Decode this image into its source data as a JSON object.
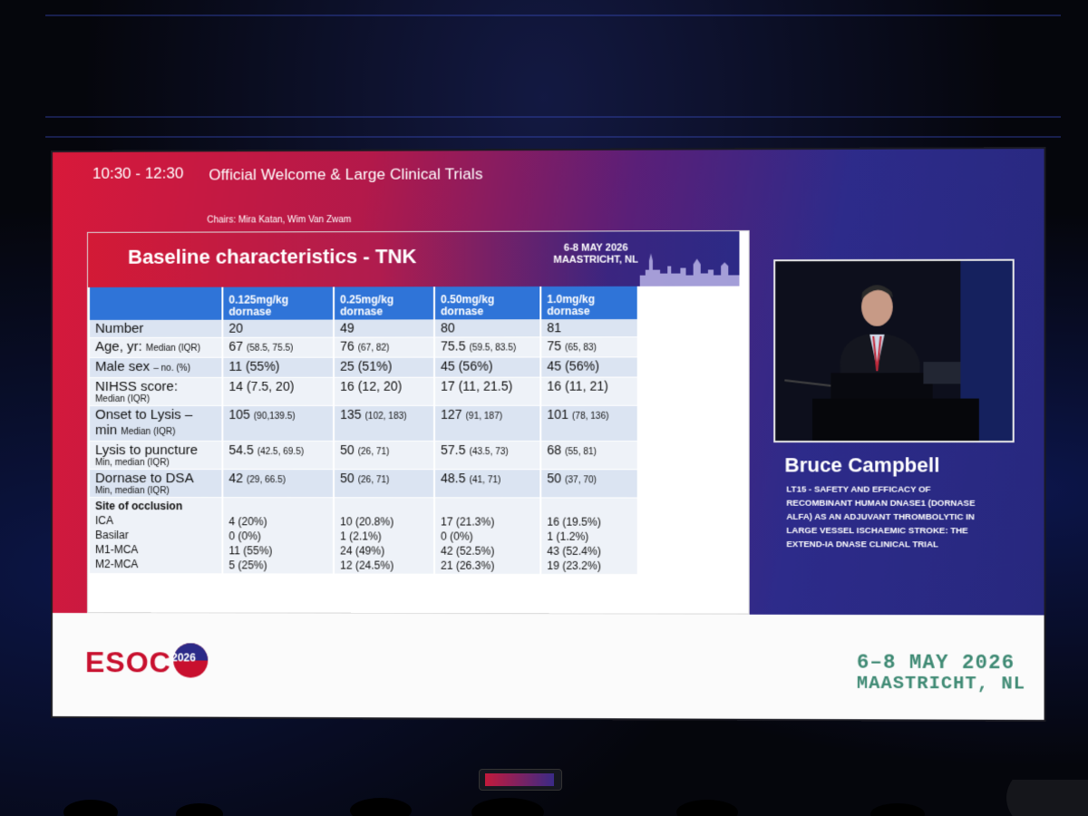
{
  "session": {
    "time": "10:30 - 12:30",
    "title": "Official Welcome & Large Clinical Trials",
    "chairs": "Chairs: Mira Katan, Wim Van Zwam"
  },
  "slide": {
    "title": "Baseline characteristics - TNK",
    "dates_line1": "6-8 MAY 2026",
    "dates_line2": "MAASTRICHT, NL",
    "columns": [
      {
        "dose": "0.125mg/kg",
        "drug": "dornase"
      },
      {
        "dose": "0.25mg/kg",
        "drug": "dornase"
      },
      {
        "dose": "0.50mg/kg",
        "drug": "dornase"
      },
      {
        "dose": "1.0mg/kg",
        "drug": "dornase"
      }
    ],
    "rows": [
      {
        "label": "Number",
        "sub": "",
        "sub_below": "",
        "cells": [
          {
            "main": "20",
            "ci": ""
          },
          {
            "main": "49",
            "ci": ""
          },
          {
            "main": "80",
            "ci": ""
          },
          {
            "main": "81",
            "ci": ""
          }
        ]
      },
      {
        "label": "Age, yr:",
        "sub": "Median (IQR)",
        "sub_below": "",
        "cells": [
          {
            "main": "67",
            "ci": "(58.5, 75.5)"
          },
          {
            "main": "76",
            "ci": "(67, 82)"
          },
          {
            "main": "75.5",
            "ci": "(59.5, 83.5)"
          },
          {
            "main": "75",
            "ci": "(65, 83)"
          }
        ]
      },
      {
        "label": "Male sex",
        "sub": "– no. (%)",
        "sub_below": "",
        "cells": [
          {
            "main": "11 (55%)",
            "ci": ""
          },
          {
            "main": "25 (51%)",
            "ci": ""
          },
          {
            "main": "45 (56%)",
            "ci": ""
          },
          {
            "main": "45 (56%)",
            "ci": ""
          }
        ]
      },
      {
        "label": "NIHSS score:",
        "sub": "",
        "sub_below": "Median (IQR)",
        "cells": [
          {
            "main": "14 (7.5, 20)",
            "ci": ""
          },
          {
            "main": "16 (12, 20)",
            "ci": ""
          },
          {
            "main": "17 (11, 21.5)",
            "ci": ""
          },
          {
            "main": "16 (11, 21)",
            "ci": ""
          }
        ]
      },
      {
        "label": "Onset to Lysis – min",
        "sub": "Median (IQR)",
        "sub_below": "",
        "cells": [
          {
            "main": "105",
            "ci": "(90,139.5)"
          },
          {
            "main": "135",
            "ci": "(102, 183)"
          },
          {
            "main": "127",
            "ci": "(91, 187)"
          },
          {
            "main": "101",
            "ci": "(78, 136)"
          }
        ]
      },
      {
        "label": "Lysis to puncture",
        "sub": "",
        "sub_below": "Min, median (IQR)",
        "cells": [
          {
            "main": "54.5",
            "ci": "(42.5, 69.5)"
          },
          {
            "main": "50",
            "ci": "(26, 71)"
          },
          {
            "main": "57.5",
            "ci": "(43.5, 73)"
          },
          {
            "main": "68",
            "ci": "(55, 81)"
          }
        ]
      },
      {
        "label": "Dornase to DSA",
        "sub": "",
        "sub_below": "Min, median (IQR)",
        "cells": [
          {
            "main": "42",
            "ci": "(29, 66.5)"
          },
          {
            "main": "50",
            "ci": "(26, 71)"
          },
          {
            "main": "48.5",
            "ci": "(41, 71)"
          },
          {
            "main": "50",
            "ci": "(37, 70)"
          }
        ]
      }
    ],
    "occlusion": {
      "header": "Site of occlusion",
      "labels": [
        "ICA",
        "Basilar",
        "M1-MCA",
        "M2-MCA"
      ],
      "values": [
        [
          "4 (20%)",
          "0 (0%)",
          "11 (55%)",
          "5 (25%)"
        ],
        [
          "10 (20.8%)",
          "1 (2.1%)",
          "24 (49%)",
          "12 (24.5%)"
        ],
        [
          "17 (21.3%)",
          "0 (0%)",
          "42 (52.5%)",
          "21 (26.3%)"
        ],
        [
          "16 (19.5%)",
          "1 (1.2%)",
          "43 (52.4%)",
          "19 (23.2%)"
        ]
      ]
    }
  },
  "speaker": {
    "name": "Bruce Campbell",
    "talk": "LT15 - SAFETY AND EFFICACY OF RECOMBINANT HUMAN DNASE1 (DORNASE ALFA) AS AN ADJUVANT THROMBOLYTIC IN LARGE VESSEL ISCHAEMIC STROKE: THE EXTEND-IA DNASE CLINICAL TRIAL"
  },
  "footer": {
    "logo_text": "ESOC",
    "logo_year": "2026",
    "date": "6–8 MAY 2026",
    "location": "MAASTRICHT, NL"
  },
  "colors": {
    "red": "#d8193a",
    "purple": "#2d2b8a",
    "table_header": "#2f74d8",
    "footer_green": "#3f8a74"
  }
}
